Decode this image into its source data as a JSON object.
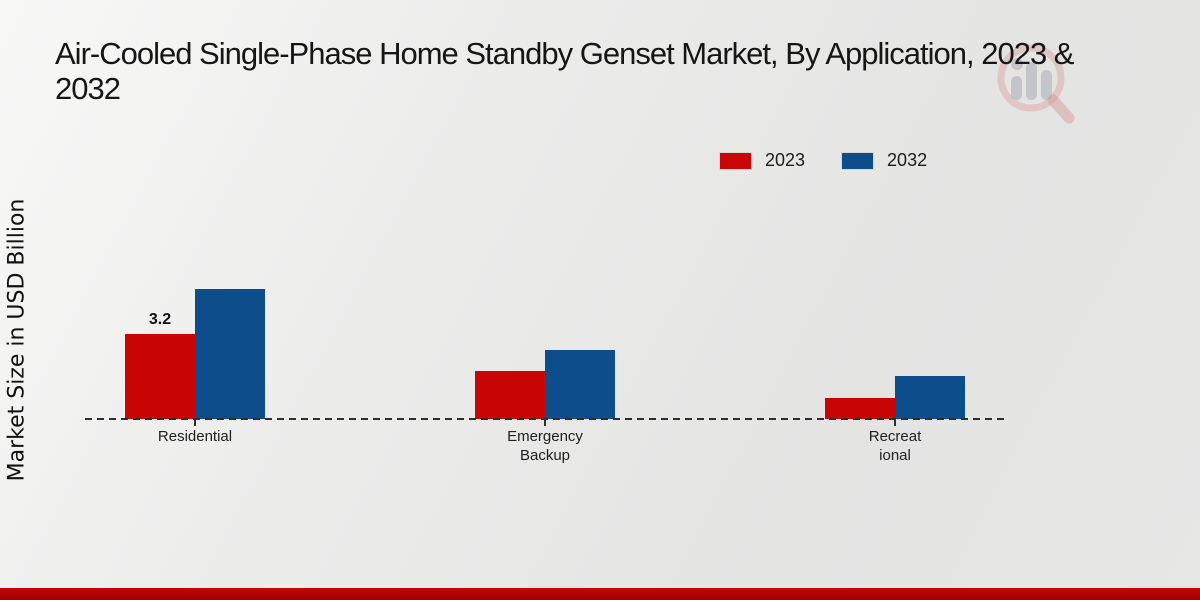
{
  "page": {
    "title_line1": "Air-Cooled Single-Phase Home Standby Genset Market, By Application, 2023 &",
    "title_line2": "2032"
  },
  "icons": {
    "watermark": "magnifier-bar-chart-logo"
  },
  "colors": {
    "red_2023": "#c90505",
    "blue_2032": "#0d4d8c",
    "footer_strip": "#ad0303",
    "baseline": "#2e2e2e",
    "background": "#e7e7e6"
  },
  "legend": {
    "items": [
      {
        "label": "2023",
        "color": "#c90505"
      },
      {
        "label": "2032",
        "color": "#0d4d8c"
      }
    ]
  },
  "chart_data": {
    "type": "bar",
    "title": "Air-Cooled Single-Phase Home Standby Genset Market, By Application, 2023 & 2032",
    "xlabel": "",
    "ylabel": "Market Size in USD Billion",
    "categories": [
      "Residential",
      "Emergency Backup",
      "Recreational"
    ],
    "category_label_lines": [
      [
        "Residential"
      ],
      [
        "Emergency",
        "Backup"
      ],
      [
        "Recreat",
        "ional"
      ]
    ],
    "series": [
      {
        "name": "2023",
        "color": "#c90505",
        "values": [
          3.2,
          1.8,
          0.8
        ]
      },
      {
        "name": "2032",
        "color": "#0d4d8c",
        "values": [
          4.9,
          2.6,
          1.6
        ]
      }
    ],
    "bar_labels": [
      {
        "series_index": 0,
        "category_index": 0,
        "text": "3.2"
      }
    ],
    "ylim": [
      0,
      7
    ],
    "grid": false,
    "legend_position": "top-right",
    "baseline_style": "dashed",
    "y_axis_ticks_visible": false
  }
}
